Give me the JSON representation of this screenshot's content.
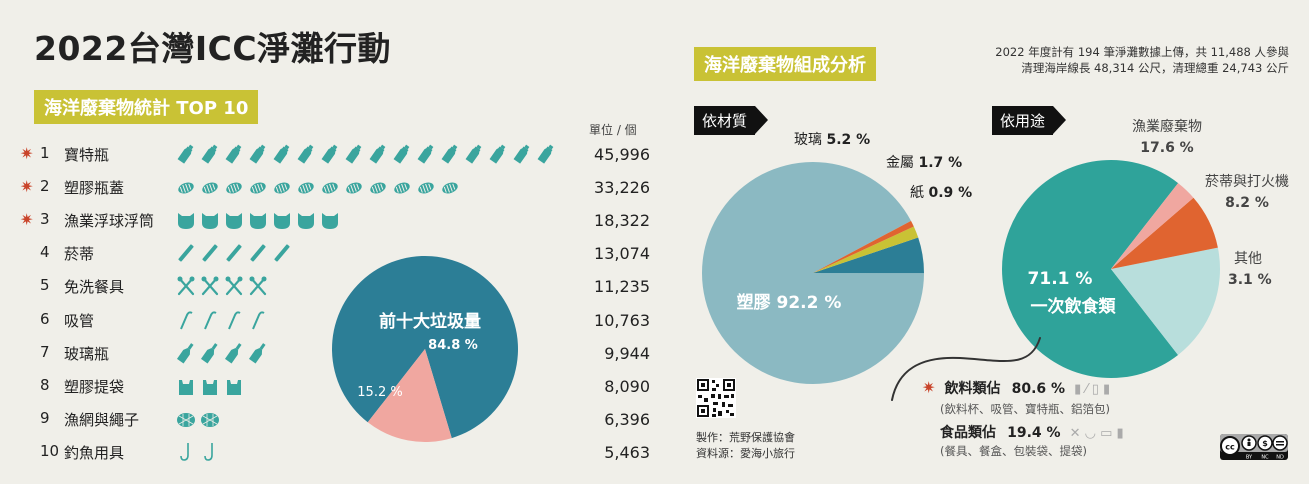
{
  "title": "2022台灣ICC淨灘行動",
  "top10": {
    "heading": "海洋廢棄物統計 TOP 10",
    "unit_label": "單位 / 個",
    "items": [
      {
        "rank": "1",
        "name": "寶特瓶",
        "value": "45,996",
        "icon": "bottle-icon",
        "icon_count": 16,
        "starred": true
      },
      {
        "rank": "2",
        "name": "塑膠瓶蓋",
        "value": "33,226",
        "icon": "bottle-cap-icon",
        "icon_count": 12,
        "starred": true
      },
      {
        "rank": "3",
        "name": "漁業浮球浮筒",
        "value": "18,322",
        "icon": "buoy-icon",
        "icon_count": 7,
        "starred": true
      },
      {
        "rank": "4",
        "name": "菸蒂",
        "value": "13,074",
        "icon": "cigarette-butt-icon",
        "icon_count": 5,
        "starred": false
      },
      {
        "rank": "5",
        "name": "免洗餐具",
        "value": "11,235",
        "icon": "utensils-icon",
        "icon_count": 4,
        "starred": false
      },
      {
        "rank": "6",
        "name": "吸管",
        "value": "10,763",
        "icon": "straw-icon",
        "icon_count": 4,
        "starred": false
      },
      {
        "rank": "7",
        "name": "玻璃瓶",
        "value": "9,944",
        "icon": "glass-bottle-icon",
        "icon_count": 4,
        "starred": false
      },
      {
        "rank": "8",
        "name": "塑膠提袋",
        "value": "8,090",
        "icon": "plastic-bag-icon",
        "icon_count": 3,
        "starred": false
      },
      {
        "rank": "9",
        "name": "漁網與繩子",
        "value": "6,396",
        "icon": "fishing-net-icon",
        "icon_count": 2,
        "starred": false
      },
      {
        "rank": "10",
        "name": "釣魚用具",
        "value": "5,463",
        "icon": "fishing-hook-icon",
        "icon_count": 2,
        "starred": false
      }
    ]
  },
  "composition": {
    "heading": "海洋廢棄物組成分析",
    "summary_line1": "2022 年度計有 194 筆淨灘數據上傳，共 11,488 人參與",
    "summary_line2": "清理海岸線長 48,314 公尺，清理總重 24,743 公斤",
    "by_material_tag": "依材質",
    "by_use_tag": "依用途",
    "beverage_label": "飲料類佔",
    "beverage_pct": "80.6 %",
    "beverage_items": "(飲料杯、吸管、寶特瓶、鋁箔包)",
    "food_label": "食品類佔",
    "food_pct": "19.4 %",
    "food_items": "(餐具、餐盒、包裝袋、提袋)"
  },
  "credits": {
    "maker": "製作：荒野保護協會",
    "source": "資料源：愛海小旅行",
    "license": "cc BY NC ND"
  },
  "colors": {
    "teal_dark": "#2c7e96",
    "teal_light": "#8bb9c2",
    "teal_green": "#2fa39a",
    "mint": "#b8dedc",
    "orange": "#e06430",
    "pink": "#f0a7a0",
    "yellow_green": "#c9c235",
    "icon_teal": "#3aa59e"
  },
  "chart_data": [
    {
      "type": "bar",
      "title": "海洋廢棄物統計 TOP 10",
      "categories": [
        "寶特瓶",
        "塑膠瓶蓋",
        "漁業浮球浮筒",
        "菸蒂",
        "免洗餐具",
        "吸管",
        "玻璃瓶",
        "塑膠提袋",
        "漁網與繩子",
        "釣魚用具"
      ],
      "values": [
        45996,
        33226,
        18322,
        13074,
        11235,
        10763,
        9944,
        8090,
        6396,
        5463
      ],
      "ylabel": "單位 / 個"
    },
    {
      "type": "pie",
      "title": "",
      "labels": [
        "前十大垃圾量",
        ""
      ],
      "values": [
        84.8,
        15.2
      ],
      "value_labels": [
        "84.8 %",
        "15.2 %"
      ],
      "colors": [
        "#2c7e96",
        "#f0a7a0"
      ]
    },
    {
      "type": "pie",
      "title": "依材質",
      "labels": [
        "塑膠",
        "玻璃",
        "金屬",
        "紙"
      ],
      "values": [
        92.2,
        5.2,
        1.7,
        0.9
      ],
      "value_labels": [
        "92.2 %",
        "5.2 %",
        "1.7 %",
        "0.9 %"
      ],
      "colors": [
        "#8bb9c2",
        "#2c7e96",
        "#c9c235",
        "#e06430"
      ]
    },
    {
      "type": "pie",
      "title": "依用途",
      "labels": [
        "一次飲食類",
        "漁業廢棄物",
        "菸蒂與打火機",
        "其他"
      ],
      "values": [
        71.1,
        17.6,
        8.2,
        3.1
      ],
      "value_labels": [
        "71.1 %",
        "17.6 %",
        "8.2 %",
        "3.1 %"
      ],
      "colors": [
        "#2fa39a",
        "#b8dedc",
        "#e06430",
        "#f0a7a0"
      ]
    }
  ]
}
